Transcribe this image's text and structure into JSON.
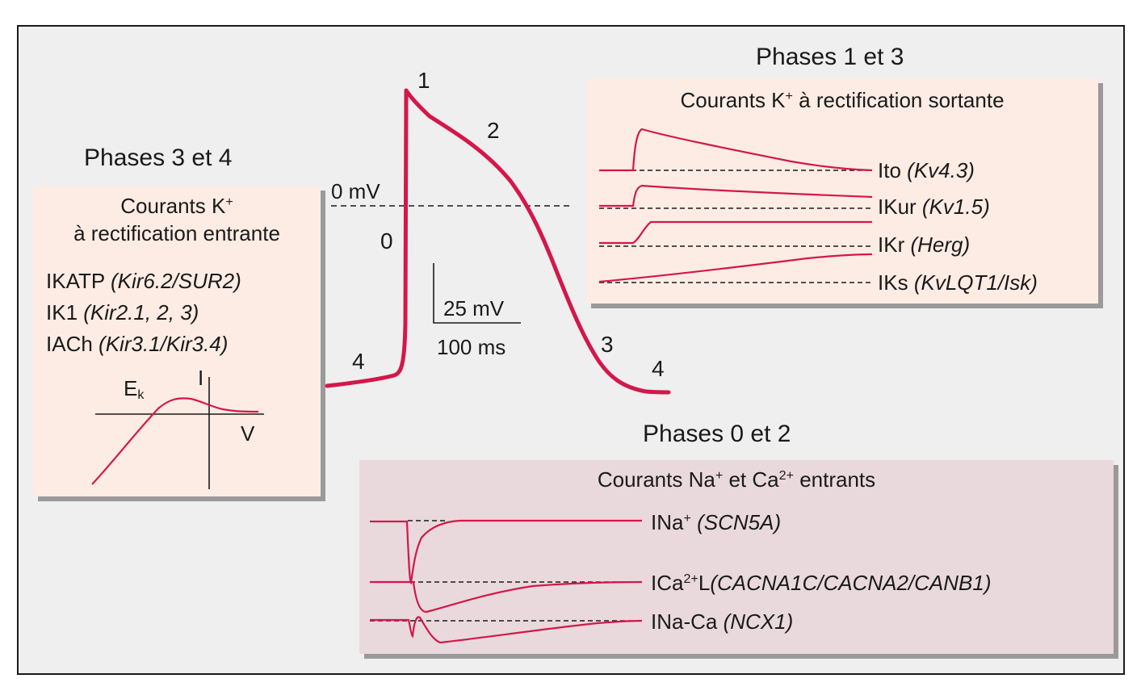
{
  "colors": {
    "trace": "#d4174a",
    "frame_bg": "#efefef",
    "k_box_bg": "#fdece4",
    "na_box_bg": "#e9d9dc",
    "dash": "#1a1a1a"
  },
  "action_potential": {
    "zero_mv_label": "0 mV",
    "phase_labels": [
      "0",
      "1",
      "2",
      "3",
      "4",
      "4"
    ],
    "scale_voltage": "25 mV",
    "scale_time": "100 ms"
  },
  "phases_3_4": {
    "heading": "Phases 3 et 4",
    "box_title_line1": "Courants K",
    "box_title_line1_sup": "+",
    "box_title_line2": "à rectification entrante",
    "currents": [
      {
        "name": "IKATP",
        "gene": "(Kir6.2/SUR2)"
      },
      {
        "name": "IK1",
        "gene": "(Kir2.1, 2, 3)"
      },
      {
        "name": "IACh",
        "gene": "(Kir3.1/Kir3.4)"
      }
    ],
    "iv_plot": {
      "ek_label": "E",
      "ek_sub": "k",
      "i_axis_label": "I",
      "v_axis_label": "V"
    }
  },
  "phases_1_3": {
    "heading": "Phases 1 et 3",
    "box_title": "Courants K",
    "box_title_sup": "+",
    "box_title_rest": " à rectification sortante",
    "currents": [
      {
        "name": "Ito",
        "gene": "(Kv4.3)"
      },
      {
        "name": "IKur",
        "gene": "(Kv1.5)"
      },
      {
        "name": "IKr",
        "gene": "(Herg)"
      },
      {
        "name": "IKs",
        "gene": "(KvLQT1/Isk)"
      }
    ]
  },
  "phases_0_2": {
    "heading": "Phases 0 et 2",
    "box_title_a": "Courants Na",
    "box_title_a_sup": "+",
    "box_title_b": " et Ca",
    "box_title_b_sup": "2+",
    "box_title_c": " entrants",
    "currents": [
      {
        "name": "INa",
        "name_sup": "+",
        "name_rest": "",
        "gene": "(SCN5A)"
      },
      {
        "name": "ICa",
        "name_sup": "2+",
        "name_rest": "L",
        "gene": "(CACNA1C/CACNA2/CANB1)"
      },
      {
        "name": "INa-Ca",
        "name_sup": "",
        "name_rest": "",
        "gene": "(NCX1)"
      }
    ]
  }
}
